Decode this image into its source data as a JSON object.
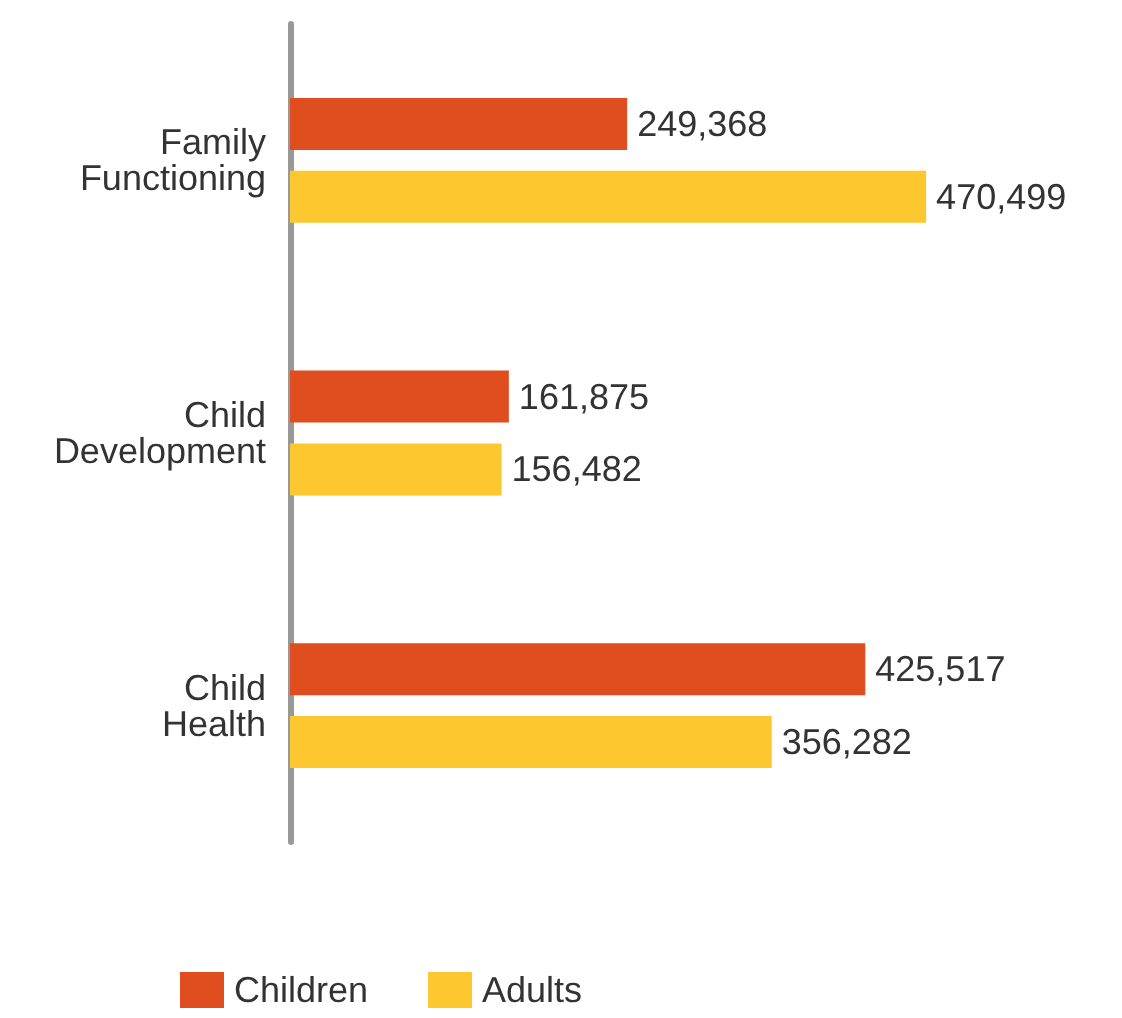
{
  "chart_data": {
    "type": "bar",
    "orientation": "horizontal",
    "categories": [
      "Family Functioning",
      "Child Development",
      "Child Health"
    ],
    "series": [
      {
        "name": "Children",
        "color": "#e04e1f",
        "values": [
          249368,
          161875,
          425517
        ],
        "value_labels": [
          "249,368",
          "161,875",
          "425,517"
        ]
      },
      {
        "name": "Adults",
        "color": "#fdc82f",
        "values": [
          470499,
          156482,
          356282
        ],
        "value_labels": [
          "470,499",
          "156,482",
          "356,282"
        ]
      }
    ],
    "legend": "bottom"
  }
}
